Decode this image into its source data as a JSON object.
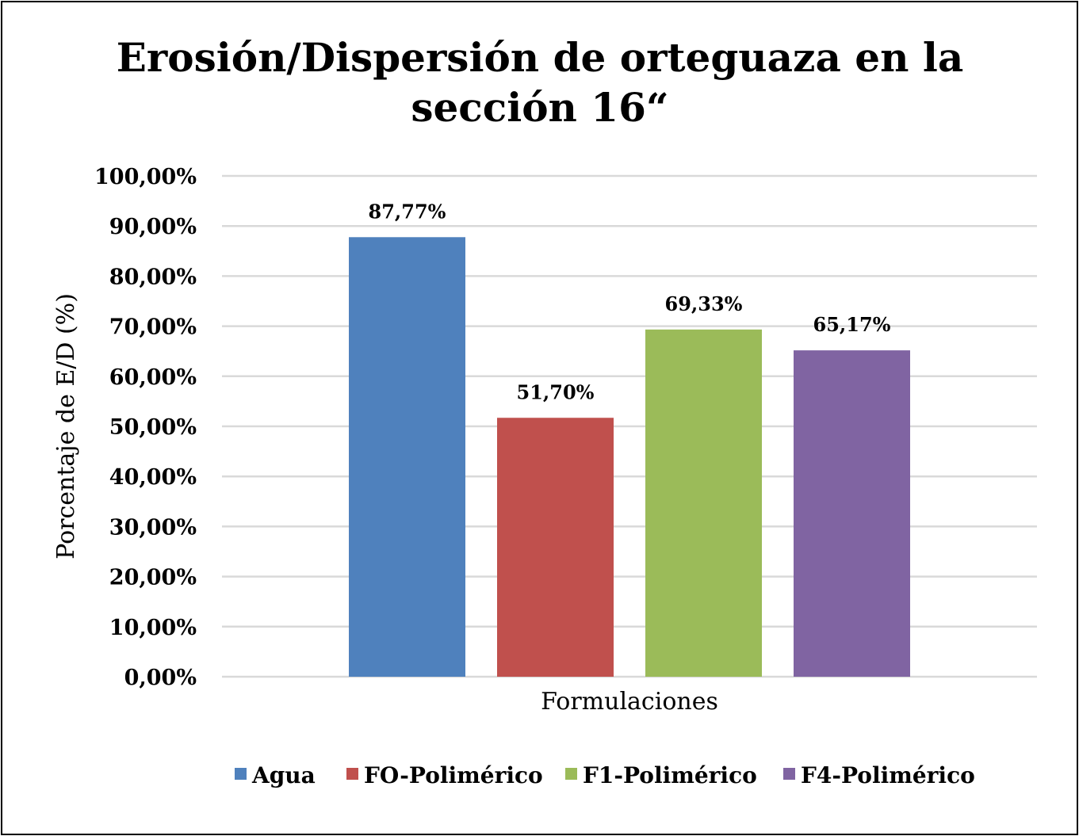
{
  "chart_data": {
    "type": "bar",
    "title": "Erosión/Dispersión de orteguaza en la sección 16“",
    "title_lines": [
      "Erosión/Dispersión de orteguaza en la",
      "sección 16“"
    ],
    "xlabel": "Formulaciones",
    "ylabel": "Porcentaje de E/D (%)",
    "ylim": [
      0,
      100
    ],
    "yticks": [
      "0,00%",
      "10,00%",
      "20,00%",
      "30,00%",
      "40,00%",
      "50,00%",
      "60,00%",
      "70,00%",
      "80,00%",
      "90,00%",
      "100,00%"
    ],
    "grid": true,
    "legend_position": "bottom",
    "series": [
      {
        "name": "Agua",
        "value": 87.77,
        "label": "87,77%",
        "color": "#4F81BD"
      },
      {
        "name": "FO-Polimérico",
        "value": 51.7,
        "label": "51,70%",
        "color": "#C0504D"
      },
      {
        "name": "F1-Polimérico",
        "value": 69.33,
        "label": "69,33%",
        "color": "#9BBB59"
      },
      {
        "name": "F4-Polimérico",
        "value": 65.17,
        "label": "65,17%",
        "color": "#8064A2"
      }
    ]
  }
}
